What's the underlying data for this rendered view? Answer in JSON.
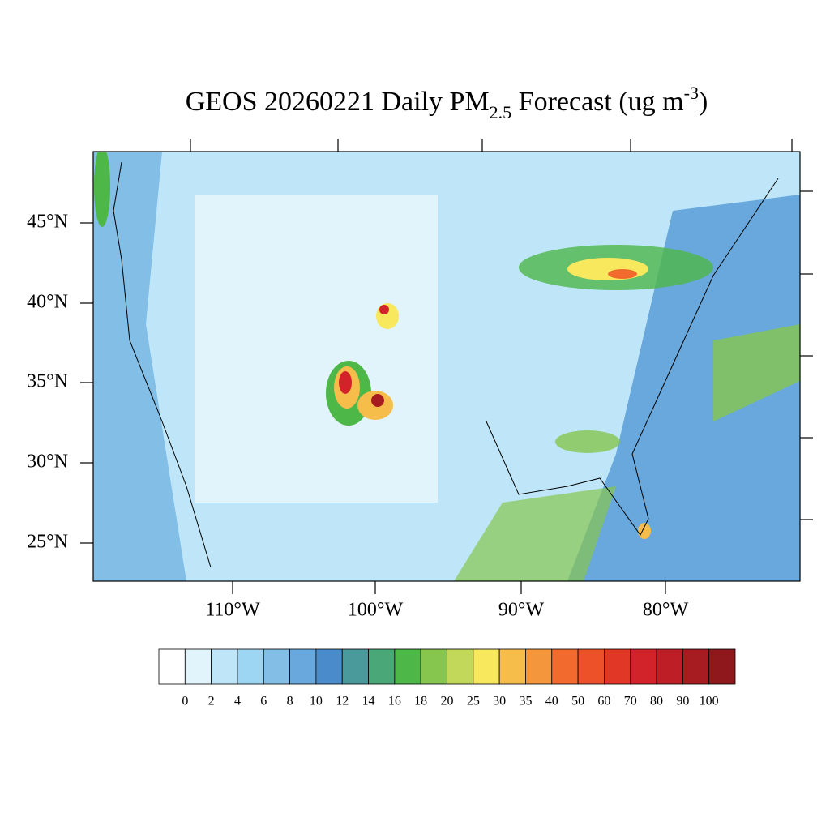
{
  "map": {
    "title": {
      "main": "GEOS 20260221 Daily PM",
      "sub": "2.5",
      "mid": " Forecast (ug m",
      "sup": "-3",
      "end": ")"
    },
    "lat_labels": [
      "45°N",
      "40°N",
      "35°N",
      "30°N",
      "25°N"
    ],
    "lon_labels": [
      "110°W",
      "100°W",
      "90°W",
      "80°W"
    ],
    "colorbar": {
      "levels": [
        0,
        2,
        4,
        6,
        8,
        10,
        12,
        14,
        16,
        18,
        20,
        25,
        30,
        35,
        40,
        50,
        60,
        70,
        80,
        90,
        100
      ],
      "colors": [
        "#ffffff",
        "#e1f3fb",
        "#bfe6f8",
        "#9dd6f3",
        "#82bee6",
        "#68a8dc",
        "#4a8ccb",
        "#4a9a9c",
        "#4aa878",
        "#4db748",
        "#86c64f",
        "#c2d85a",
        "#f7e85d",
        "#f7bd4a",
        "#f4963c",
        "#f26a2d",
        "#ec512a",
        "#e03727",
        "#d3232a",
        "#be1e26",
        "#a71c21",
        "#8e181b"
      ]
    }
  }
}
